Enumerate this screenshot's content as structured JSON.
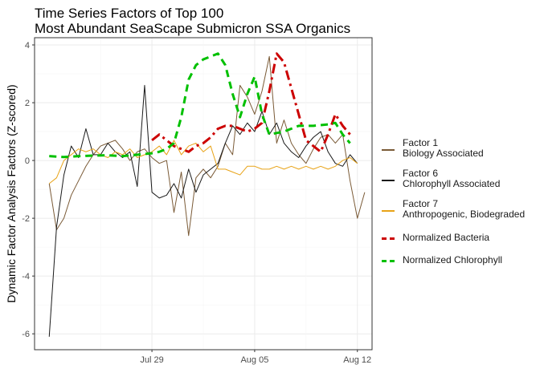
{
  "chart_data": {
    "type": "line",
    "title": [
      "Time Series Factors of Top 100",
      "Most Abundant SeaScape Submicron SSA Organics"
    ],
    "xlabel": "",
    "ylabel": "Dynamic Factor Analysis Factors (Z-scored)",
    "x_axis": {
      "type": "date",
      "range": [
        "2019-07-21",
        "2019-08-13"
      ],
      "ticks": [
        {
          "date": "2019-07-29",
          "label": "Jul 29"
        },
        {
          "date": "2019-08-05",
          "label": "Aug 05"
        },
        {
          "date": "2019-08-12",
          "label": "Aug 12"
        }
      ]
    },
    "y_axis": {
      "range": [
        -6.55,
        4.25
      ],
      "ticks": [
        -6,
        -4,
        -2,
        0,
        2,
        4
      ]
    },
    "grid": true,
    "legend_position": "right",
    "series": [
      {
        "name": "Factor 1\nBiology Associated",
        "color": "#7a5a36",
        "width": 1,
        "dash": "solid",
        "points": [
          [
            "2019-07-22 00:00",
            -0.8
          ],
          [
            "2019-07-22 12:00",
            -2.4
          ],
          [
            "2019-07-23 00:00",
            -2.0
          ],
          [
            "2019-07-23 12:00",
            -1.2
          ],
          [
            "2019-07-24 00:00",
            -0.7
          ],
          [
            "2019-07-24 12:00",
            -0.2
          ],
          [
            "2019-07-25 00:00",
            0.2
          ],
          [
            "2019-07-25 12:00",
            0.5
          ],
          [
            "2019-07-26 00:00",
            0.6
          ],
          [
            "2019-07-26 12:00",
            0.7
          ],
          [
            "2019-07-27 00:00",
            0.4
          ],
          [
            "2019-07-27 12:00",
            0.0
          ],
          [
            "2019-07-28 00:00",
            0.3
          ],
          [
            "2019-07-28 12:00",
            0.4
          ],
          [
            "2019-07-29 00:00",
            0.1
          ],
          [
            "2019-07-29 12:00",
            -0.1
          ],
          [
            "2019-07-30 00:00",
            0.0
          ],
          [
            "2019-07-30 12:00",
            -1.8
          ],
          [
            "2019-07-31 00:00",
            -0.4
          ],
          [
            "2019-07-31 12:00",
            -2.6
          ],
          [
            "2019-08-01 00:00",
            -0.6
          ],
          [
            "2019-08-01 12:00",
            -0.3
          ],
          [
            "2019-08-02 00:00",
            -0.6
          ],
          [
            "2019-08-02 12:00",
            -0.2
          ],
          [
            "2019-08-03 00:00",
            0.6
          ],
          [
            "2019-08-03 12:00",
            0.2
          ],
          [
            "2019-08-04 00:00",
            2.6
          ],
          [
            "2019-08-04 12:00",
            2.2
          ],
          [
            "2019-08-05 00:00",
            1.6
          ],
          [
            "2019-08-05 12:00",
            2.4
          ],
          [
            "2019-08-06 00:00",
            3.6
          ],
          [
            "2019-08-06 12:00",
            0.6
          ],
          [
            "2019-08-07 00:00",
            1.4
          ],
          [
            "2019-08-07 12:00",
            0.6
          ],
          [
            "2019-08-08 00:00",
            0.2
          ],
          [
            "2019-08-08 12:00",
            -0.1
          ],
          [
            "2019-08-09 00:00",
            0.4
          ],
          [
            "2019-08-09 12:00",
            0.8
          ],
          [
            "2019-08-10 00:00",
            0.9
          ],
          [
            "2019-08-10 12:00",
            0.6
          ],
          [
            "2019-08-11 00:00",
            0.9
          ],
          [
            "2019-08-11 12:00",
            -0.7
          ],
          [
            "2019-08-12 00:00",
            -2.0
          ],
          [
            "2019-08-12 12:00",
            -1.1
          ]
        ]
      },
      {
        "name": "Factor 6\nChlorophyll Associated",
        "color": "#1a1a1a",
        "width": 1,
        "dash": "solid",
        "points": [
          [
            "2019-07-22 00:00",
            -6.1
          ],
          [
            "2019-07-22 12:00",
            -2.3
          ],
          [
            "2019-07-23 00:00",
            -0.5
          ],
          [
            "2019-07-23 12:00",
            0.5
          ],
          [
            "2019-07-24 00:00",
            0.1
          ],
          [
            "2019-07-24 12:00",
            1.1
          ],
          [
            "2019-07-25 00:00",
            0.2
          ],
          [
            "2019-07-25 12:00",
            0.2
          ],
          [
            "2019-07-26 00:00",
            0.6
          ],
          [
            "2019-07-26 12:00",
            0.3
          ],
          [
            "2019-07-27 00:00",
            0.1
          ],
          [
            "2019-07-27 12:00",
            0.3
          ],
          [
            "2019-07-28 00:00",
            -0.9
          ],
          [
            "2019-07-28 12:00",
            2.6
          ],
          [
            "2019-07-29 00:00",
            -1.1
          ],
          [
            "2019-07-29 12:00",
            -1.3
          ],
          [
            "2019-07-30 00:00",
            -1.2
          ],
          [
            "2019-07-30 12:00",
            -0.8
          ],
          [
            "2019-07-31 00:00",
            -1.3
          ],
          [
            "2019-07-31 12:00",
            -0.3
          ],
          [
            "2019-08-01 00:00",
            -1.1
          ],
          [
            "2019-08-01 12:00",
            -0.5
          ],
          [
            "2019-08-02 00:00",
            -0.3
          ],
          [
            "2019-08-02 12:00",
            -0.1
          ],
          [
            "2019-08-03 00:00",
            0.6
          ],
          [
            "2019-08-03 12:00",
            1.2
          ],
          [
            "2019-08-04 00:00",
            0.9
          ],
          [
            "2019-08-04 12:00",
            1.3
          ],
          [
            "2019-08-05 00:00",
            1.0
          ],
          [
            "2019-08-05 12:00",
            1.7
          ],
          [
            "2019-08-06 00:00",
            0.9
          ],
          [
            "2019-08-06 12:00",
            1.3
          ],
          [
            "2019-08-07 00:00",
            0.6
          ],
          [
            "2019-08-07 12:00",
            0.3
          ],
          [
            "2019-08-08 00:00",
            0.1
          ],
          [
            "2019-08-08 12:00",
            0.5
          ],
          [
            "2019-08-09 00:00",
            0.8
          ],
          [
            "2019-08-09 12:00",
            1.0
          ],
          [
            "2019-08-10 00:00",
            0.3
          ],
          [
            "2019-08-10 12:00",
            -0.1
          ],
          [
            "2019-08-11 00:00",
            -0.2
          ],
          [
            "2019-08-11 12:00",
            0.2
          ],
          [
            "2019-08-12 00:00",
            -0.1
          ]
        ]
      },
      {
        "name": "Factor 7\nAnthropogenic, Biodegraded",
        "color": "#e8a317",
        "width": 1,
        "dash": "solid",
        "points": [
          [
            "2019-07-22 00:00",
            -0.8
          ],
          [
            "2019-07-22 12:00",
            -0.6
          ],
          [
            "2019-07-23 00:00",
            0.0
          ],
          [
            "2019-07-23 12:00",
            0.2
          ],
          [
            "2019-07-24 00:00",
            0.4
          ],
          [
            "2019-07-24 12:00",
            0.3
          ],
          [
            "2019-07-25 00:00",
            0.4
          ],
          [
            "2019-07-25 12:00",
            0.2
          ],
          [
            "2019-07-26 00:00",
            0.1
          ],
          [
            "2019-07-26 12:00",
            0.3
          ],
          [
            "2019-07-27 00:00",
            0.2
          ],
          [
            "2019-07-27 12:00",
            0.4
          ],
          [
            "2019-07-28 00:00",
            0.1
          ],
          [
            "2019-07-28 12:00",
            0.2
          ],
          [
            "2019-07-29 00:00",
            0.3
          ],
          [
            "2019-07-29 12:00",
            0.5
          ],
          [
            "2019-07-30 00:00",
            0.2
          ],
          [
            "2019-07-30 12:00",
            0.7
          ],
          [
            "2019-07-31 00:00",
            0.2
          ],
          [
            "2019-07-31 12:00",
            0.5
          ],
          [
            "2019-08-01 00:00",
            0.6
          ],
          [
            "2019-08-01 12:00",
            0.3
          ],
          [
            "2019-08-02 00:00",
            0.5
          ],
          [
            "2019-08-02 12:00",
            -0.3
          ],
          [
            "2019-08-03 00:00",
            -0.3
          ],
          [
            "2019-08-03 12:00",
            -0.4
          ],
          [
            "2019-08-04 00:00",
            -0.5
          ],
          [
            "2019-08-04 12:00",
            -0.2
          ],
          [
            "2019-08-05 00:00",
            -0.2
          ],
          [
            "2019-08-05 12:00",
            -0.3
          ],
          [
            "2019-08-06 00:00",
            -0.3
          ],
          [
            "2019-08-06 12:00",
            -0.2
          ],
          [
            "2019-08-07 00:00",
            -0.3
          ],
          [
            "2019-08-07 12:00",
            -0.2
          ],
          [
            "2019-08-08 00:00",
            -0.3
          ],
          [
            "2019-08-08 12:00",
            -0.2
          ],
          [
            "2019-08-09 00:00",
            -0.3
          ],
          [
            "2019-08-09 12:00",
            -0.2
          ],
          [
            "2019-08-10 00:00",
            -0.3
          ],
          [
            "2019-08-10 12:00",
            -0.2
          ],
          [
            "2019-08-11 00:00",
            0.0
          ],
          [
            "2019-08-11 12:00",
            0.1
          ],
          [
            "2019-08-12 00:00",
            -0.1
          ]
        ]
      },
      {
        "name": "Normalized Bacteria",
        "color": "#cc0000",
        "width": 3,
        "dash": "dotdash",
        "points": [
          [
            "2019-07-29 00:00",
            0.7
          ],
          [
            "2019-07-29 12:00",
            0.9
          ],
          [
            "2019-07-30 00:00",
            0.7
          ],
          [
            "2019-07-30 12:00",
            0.5
          ],
          [
            "2019-07-31 00:00",
            0.4
          ],
          [
            "2019-07-31 12:00",
            0.3
          ],
          [
            "2019-08-01 00:00",
            0.5
          ],
          [
            "2019-08-01 12:00",
            0.6
          ],
          [
            "2019-08-02 00:00",
            0.8
          ],
          [
            "2019-08-02 12:00",
            1.1
          ],
          [
            "2019-08-03 00:00",
            1.2
          ],
          [
            "2019-08-03 12:00",
            1.2
          ],
          [
            "2019-08-04 00:00",
            1.1
          ],
          [
            "2019-08-04 12:00",
            1.0
          ],
          [
            "2019-08-05 00:00",
            1.1
          ],
          [
            "2019-08-05 12:00",
            1.3
          ],
          [
            "2019-08-06 00:00",
            2.4
          ],
          [
            "2019-08-06 12:00",
            3.7
          ],
          [
            "2019-08-07 00:00",
            3.4
          ],
          [
            "2019-08-07 12:00",
            2.5
          ],
          [
            "2019-08-08 00:00",
            1.6
          ],
          [
            "2019-08-08 12:00",
            0.7
          ],
          [
            "2019-08-09 00:00",
            0.5
          ],
          [
            "2019-08-09 12:00",
            0.3
          ],
          [
            "2019-08-10 00:00",
            0.9
          ],
          [
            "2019-08-10 12:00",
            1.6
          ],
          [
            "2019-08-11 00:00",
            1.2
          ],
          [
            "2019-08-11 12:00",
            0.9
          ]
        ]
      },
      {
        "name": "Normalized Chlorophyll",
        "color": "#00c000",
        "width": 3,
        "dash": "dashed",
        "points": [
          [
            "2019-07-22 00:00",
            0.15
          ],
          [
            "2019-07-23 00:00",
            0.12
          ],
          [
            "2019-07-24 00:00",
            0.15
          ],
          [
            "2019-07-25 00:00",
            0.17
          ],
          [
            "2019-07-26 00:00",
            0.18
          ],
          [
            "2019-07-27 00:00",
            0.15
          ],
          [
            "2019-07-28 00:00",
            0.2
          ],
          [
            "2019-07-29 00:00",
            0.25
          ],
          [
            "2019-07-29 12:00",
            0.3
          ],
          [
            "2019-07-30 00:00",
            0.4
          ],
          [
            "2019-07-30 12:00",
            0.6
          ],
          [
            "2019-07-31 00:00",
            1.5
          ],
          [
            "2019-07-31 12:00",
            2.8
          ],
          [
            "2019-08-01 00:00",
            3.3
          ],
          [
            "2019-08-01 12:00",
            3.5
          ],
          [
            "2019-08-02 00:00",
            3.6
          ],
          [
            "2019-08-02 12:00",
            3.7
          ],
          [
            "2019-08-03 00:00",
            3.3
          ],
          [
            "2019-08-03 12:00",
            2.3
          ],
          [
            "2019-08-04 00:00",
            1.5
          ],
          [
            "2019-08-04 12:00",
            2.3
          ],
          [
            "2019-08-05 00:00",
            2.9
          ],
          [
            "2019-08-05 12:00",
            1.6
          ],
          [
            "2019-08-06 00:00",
            0.9
          ],
          [
            "2019-08-07 00:00",
            1.0
          ],
          [
            "2019-08-08 00:00",
            1.2
          ],
          [
            "2019-08-09 00:00",
            1.2
          ],
          [
            "2019-08-10 00:00",
            1.25
          ],
          [
            "2019-08-10 12:00",
            1.3
          ],
          [
            "2019-08-11 00:00",
            0.9
          ],
          [
            "2019-08-11 12:00",
            0.6
          ]
        ]
      }
    ]
  }
}
